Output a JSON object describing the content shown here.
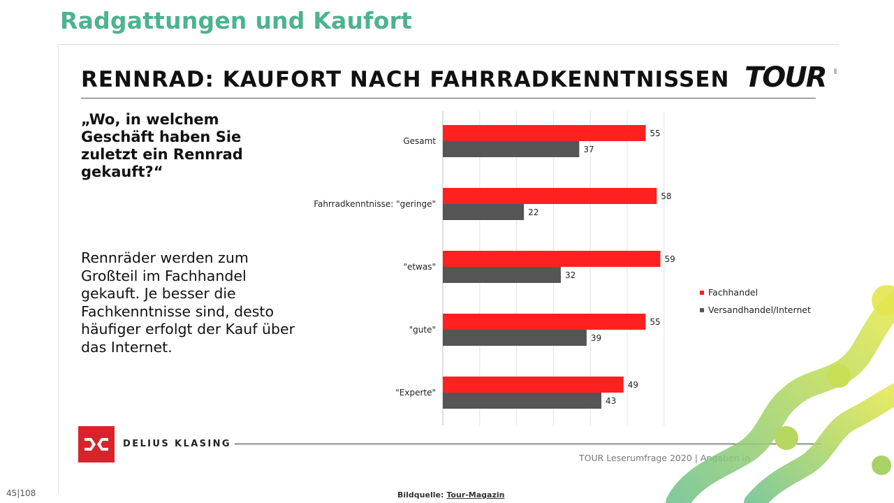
{
  "page": {
    "title": "Radgattungen und Kaufort",
    "page_number": "45|108",
    "image_credit_label": "Bildquelle:",
    "image_credit_link": "Tour-Magazin"
  },
  "slide": {
    "title": "RENNRAD: KAUFORT NACH FAHRRADKENNTNISSEN",
    "brand": "TOUR",
    "question": "„Wo, in welchem Geschäft haben Sie zuletzt ein Rennrad gekauft?“",
    "statement": "Rennräder werden zum Großteil im Fachhandel gekauft. Je besser die Fachkenntnisse sind, desto häufiger erfolgt der Kauf über das Internet.",
    "publisher": "DELIUS KLASING",
    "source_note": "TOUR Leserumfrage 2020 | Angaben in"
  },
  "colors": {
    "accent": "#4cb391",
    "fachhandel": "#ff2020",
    "versand": "#555555",
    "publisher_red": "#d7242a"
  },
  "chart_data": {
    "type": "bar",
    "orientation": "horizontal",
    "categories": [
      "Gesamt",
      "Fahrradkenntnisse: \"geringe\"",
      "\"etwas\"",
      "\"gute\"",
      "\"Experte\""
    ],
    "series": [
      {
        "name": "Fachhandel",
        "values": [
          55,
          58,
          59,
          55,
          49
        ]
      },
      {
        "name": "Versandhandel/Internet",
        "values": [
          37,
          22,
          32,
          39,
          43
        ]
      }
    ],
    "xlim": [
      0,
      100
    ],
    "grid": true,
    "legend_position": "right",
    "data_labels": true
  }
}
